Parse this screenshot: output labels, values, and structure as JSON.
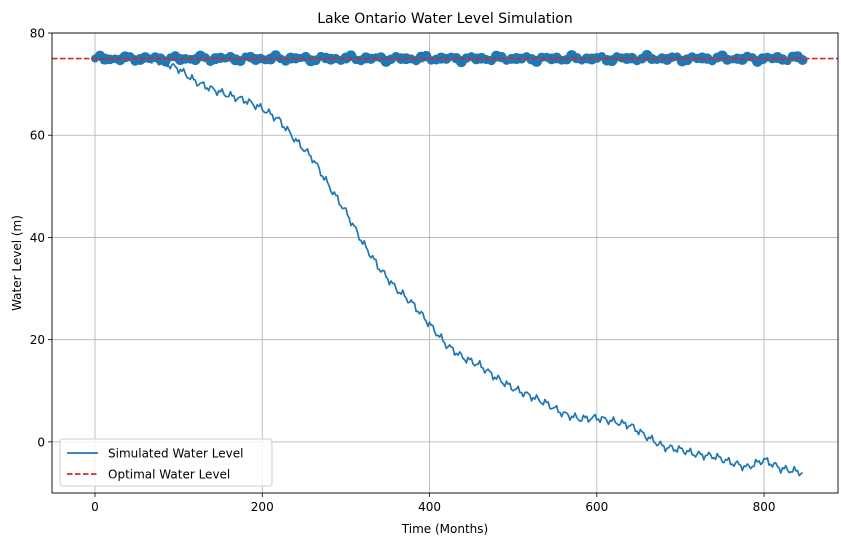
{
  "chart_data": {
    "type": "line",
    "title": "Lake Ontario Water Level Simulation",
    "xlabel": "Time (Months)",
    "ylabel": "Water Level (m)",
    "xlim": [
      -51.4,
      888.4
    ],
    "ylim": [
      -10,
      80
    ],
    "xticks": [
      0,
      200,
      400,
      600,
      800
    ],
    "yticks": [
      0,
      20,
      40,
      60,
      80
    ],
    "grid": true,
    "legend_position": "lower-left",
    "optimal_level": 75,
    "series": [
      {
        "name": "Simulated Water Level",
        "color": "#1f77b4",
        "style": "solid",
        "x": [
          0,
          20,
          40,
          60,
          80,
          100,
          120,
          140,
          160,
          180,
          200,
          220,
          240,
          260,
          280,
          300,
          320,
          340,
          360,
          380,
          400,
          420,
          440,
          460,
          480,
          500,
          520,
          540,
          560,
          580,
          600,
          620,
          640,
          660,
          680,
          700,
          720,
          740,
          760,
          780,
          800,
          820,
          846
        ],
        "y": [
          75.0,
          75.0,
          75.0,
          74.8,
          74.3,
          73.0,
          70.5,
          69.0,
          67.8,
          66.8,
          65.2,
          63.0,
          59.0,
          55.5,
          50.0,
          45.0,
          39.0,
          34.0,
          30.0,
          27.0,
          23.0,
          19.0,
          16.5,
          15.0,
          12.5,
          10.5,
          9.0,
          7.5,
          5.5,
          4.5,
          4.7,
          4.0,
          3.2,
          1.0,
          -1.0,
          -1.5,
          -2.5,
          -2.8,
          -4.0,
          -5.0,
          -3.5,
          -5.2,
          -6.0
        ]
      },
      {
        "name": "Optimal Water Level",
        "color": "#d62728",
        "style": "dashed",
        "x": [
          -51.4,
          888.4
        ],
        "y": [
          75,
          75
        ]
      }
    ],
    "scatter": {
      "color": "#1f77b4",
      "x_start": 0,
      "x_end": 846,
      "step": 6,
      "center": 75,
      "amplitude": 0.6
    }
  }
}
